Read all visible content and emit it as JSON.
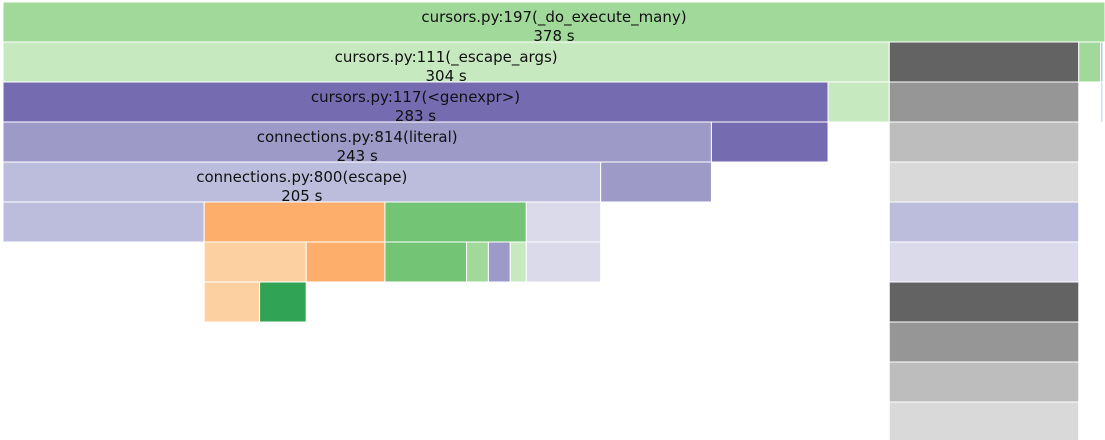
{
  "chart_data": {
    "type": "icicle",
    "total_seconds": 378,
    "value_unit": "s",
    "frames": [
      {
        "depth": 0,
        "start": 0,
        "value": 378,
        "label": "cursors.py:197(_do_execute_many)",
        "value_label": "378 s",
        "color": "#a1d99b"
      },
      {
        "depth": 1,
        "start": 0,
        "value": 304,
        "label": "cursors.py:111(_escape_args)",
        "value_label": "304 s",
        "color": "#c7e9c0"
      },
      {
        "depth": 1,
        "start": 304,
        "value": 65,
        "color": "#636363"
      },
      {
        "depth": 1,
        "start": 369,
        "value": 7.5,
        "color": "#a1d99b"
      },
      {
        "depth": 1,
        "start": 376.5,
        "value": 0.8,
        "color": "#9ecae1"
      },
      {
        "depth": 2,
        "start": 0,
        "value": 283,
        "label": "cursors.py:117(<genexpr>)",
        "value_label": "283 s",
        "color": "#756bb1"
      },
      {
        "depth": 2,
        "start": 283,
        "value": 21,
        "color": "#c7e9c0"
      },
      {
        "depth": 2,
        "start": 304,
        "value": 65,
        "color": "#969696"
      },
      {
        "depth": 2,
        "start": 376.5,
        "value": 0.8,
        "color": "#c6dbef"
      },
      {
        "depth": 3,
        "start": 0,
        "value": 243,
        "label": "connections.py:814(literal)",
        "value_label": "243 s",
        "color": "#9e9ac8"
      },
      {
        "depth": 3,
        "start": 243,
        "value": 40,
        "color": "#756bb1"
      },
      {
        "depth": 3,
        "start": 304,
        "value": 65,
        "color": "#bdbdbd"
      },
      {
        "depth": 4,
        "start": 0,
        "value": 205,
        "label": "connections.py:800(escape)",
        "value_label": "205 s",
        "color": "#bcbddc"
      },
      {
        "depth": 4,
        "start": 205,
        "value": 38,
        "color": "#9e9ac8"
      },
      {
        "depth": 4,
        "start": 304,
        "value": 65,
        "color": "#d9d9d9"
      },
      {
        "depth": 5,
        "start": 0,
        "value": 69,
        "color": "#bcbddc"
      },
      {
        "depth": 5,
        "start": 69,
        "value": 62,
        "color": "#fdae6b"
      },
      {
        "depth": 5,
        "start": 131,
        "value": 48.5,
        "color": "#74c476"
      },
      {
        "depth": 5,
        "start": 179.5,
        "value": 25.5,
        "color": "#dadaeb"
      },
      {
        "depth": 5,
        "start": 304,
        "value": 65,
        "color": "#bcbddc"
      },
      {
        "depth": 6,
        "start": 69,
        "value": 35,
        "color": "#fdd0a2"
      },
      {
        "depth": 6,
        "start": 104,
        "value": 27,
        "color": "#fdae6b"
      },
      {
        "depth": 6,
        "start": 131,
        "value": 28,
        "color": "#74c476"
      },
      {
        "depth": 6,
        "start": 159,
        "value": 7.5,
        "color": "#a1d99b"
      },
      {
        "depth": 6,
        "start": 166.5,
        "value": 7.5,
        "color": "#9e9ac8"
      },
      {
        "depth": 6,
        "start": 174,
        "value": 5.5,
        "color": "#c7e9c0"
      },
      {
        "depth": 6,
        "start": 179.5,
        "value": 25.5,
        "color": "#dadaeb"
      },
      {
        "depth": 6,
        "start": 304,
        "value": 65,
        "color": "#dadaeb"
      },
      {
        "depth": 7,
        "start": 69,
        "value": 19,
        "color": "#fdd0a2"
      },
      {
        "depth": 7,
        "start": 88,
        "value": 16,
        "color": "#31a354"
      },
      {
        "depth": 7,
        "start": 304,
        "value": 65,
        "color": "#636363"
      },
      {
        "depth": 8,
        "start": 304,
        "value": 65,
        "color": "#969696"
      },
      {
        "depth": 9,
        "start": 304,
        "value": 65,
        "color": "#bdbdbd"
      },
      {
        "depth": 10,
        "start": 304,
        "value": 65,
        "color": "#d9d9d9"
      }
    ]
  }
}
